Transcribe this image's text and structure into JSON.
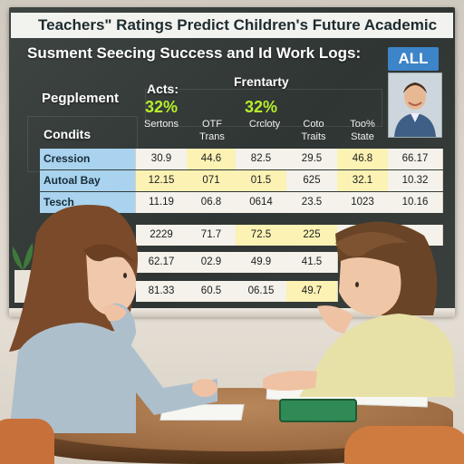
{
  "board": {
    "title_line1": "Teachers\" Ratings Predict Children's Future Academic",
    "title_line2": "Susment Seecing Success and Id Work Logs:",
    "all_badge": "ALL",
    "label_pegplement": "Pegplement",
    "label_condits": "Condits",
    "label_acts": "Acts:",
    "label_frentarty": "Frentarty",
    "pct_left": "32%",
    "pct_right": "32%",
    "column_headers": [
      "Sertons",
      "OTF\nTrans",
      "Crcloty",
      "Coto\nTraits",
      "Too%\nState",
      ""
    ],
    "rows": [
      {
        "label": "Cression",
        "values": [
          "30.9",
          "44.6",
          "82.5",
          "29.5",
          "46.8",
          "66.17"
        ]
      },
      {
        "label": "Autoal Bay",
        "values": [
          "12.15",
          "071",
          "01.5",
          "625",
          "32.1",
          "10.32"
        ]
      },
      {
        "label": "Tesch",
        "values": [
          "11.19",
          "06.8",
          "0614",
          "23.5",
          "1023",
          "10.16"
        ]
      },
      {
        "label": "",
        "values": [
          "2229",
          "71.7",
          "72.5",
          "225",
          "",
          ""
        ]
      },
      {
        "label": "",
        "values": [
          "62.17",
          "02.9",
          "49.9",
          "41.5",
          "",
          ""
        ]
      },
      {
        "label": "",
        "values": [
          "81.33",
          "60.5",
          "06.15",
          "49.7",
          "",
          ""
        ]
      }
    ]
  },
  "colors": {
    "board": "#353b39",
    "row_label_blue": "#a9d3ee",
    "highlight_yellow": "#fbf2b4",
    "accent_green": "#b7ef2b",
    "badge_blue": "#3d84c8"
  }
}
